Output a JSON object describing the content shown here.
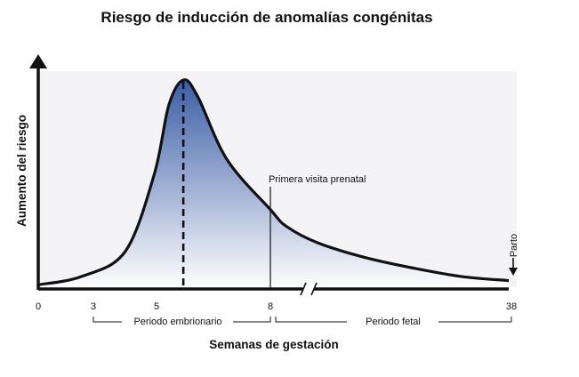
{
  "chart_data": {
    "type": "area",
    "title": "Riesgo de inducción de anomalías congénitas",
    "xlabel": "Semanas de gestación",
    "ylabel": "Aumento del riesgo",
    "x_ticks": [
      "0",
      "3",
      "5",
      "8",
      "38"
    ],
    "axis_break_between": [
      8,
      38
    ],
    "peak_x": 5,
    "first_visit_x": 8,
    "first_visit_label": "Primera visita prenatal",
    "delivery_x": 38,
    "delivery_label": "Parto",
    "periods": [
      {
        "label": "Periodo embrionario",
        "from": 3,
        "to": 8
      },
      {
        "label": "Periodo fetal",
        "from": 8,
        "to": 38
      }
    ],
    "curve": {
      "x": [
        0,
        1.5,
        3,
        4,
        4.5,
        5,
        5.5,
        6.5,
        8,
        10,
        14,
        20,
        26,
        32,
        38
      ],
      "y": [
        0.02,
        0.06,
        0.18,
        0.55,
        0.88,
        1.0,
        0.92,
        0.62,
        0.38,
        0.3,
        0.22,
        0.15,
        0.1,
        0.06,
        0.04
      ]
    },
    "colors": {
      "curve": "#111111",
      "fill_top": "#3b5da6",
      "fill_bottom": "#ffffff",
      "background": "#f4f4f6"
    }
  }
}
